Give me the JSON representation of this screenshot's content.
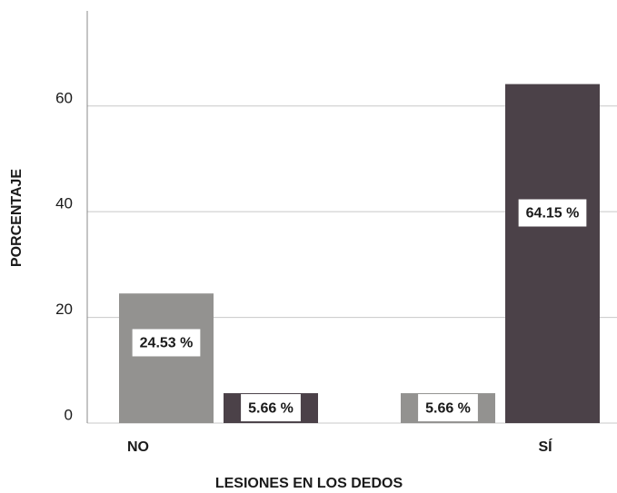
{
  "chart_data": {
    "type": "bar",
    "x_label": "LESIONES EN LOS DEDOS",
    "y_label": "PORCENTAJE",
    "categories": [
      "NO",
      "SÍ"
    ],
    "series": [
      {
        "color": "#939290",
        "values": [
          24.53,
          5.66
        ],
        "value_labels": [
          "24.53 %",
          "5.66 %"
        ]
      },
      {
        "color": "#4b4148",
        "values": [
          5.66,
          64.15
        ],
        "value_labels": [
          "5.66 %",
          "64.15 %"
        ]
      }
    ],
    "ylim": [
      0,
      78
    ],
    "yticks": [
      0,
      20,
      40,
      60
    ],
    "grid": true
  }
}
